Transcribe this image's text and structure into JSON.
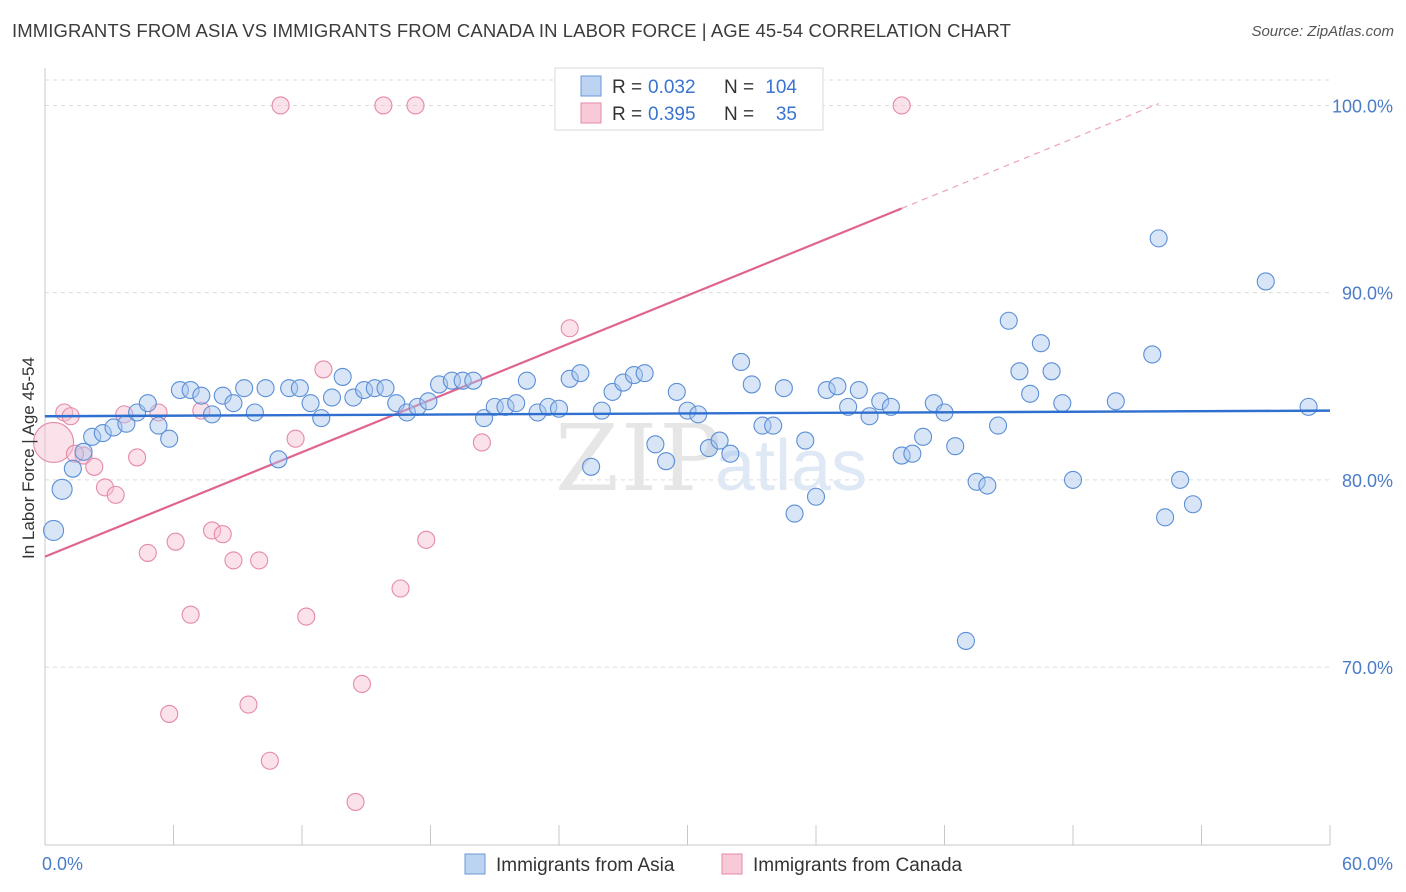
{
  "title": "IMMIGRANTS FROM ASIA VS IMMIGRANTS FROM CANADA IN LABOR FORCE | AGE 45-54 CORRELATION CHART",
  "source": "Source: ZipAtlas.com",
  "watermark": {
    "zip": "ZIP",
    "atlas": "atlas"
  },
  "colors": {
    "asia_fill": "#a9c6ee",
    "asia_stroke": "#5b8fd6",
    "asia_line": "#2f6fcf",
    "canada_fill": "#f6bfd0",
    "canada_stroke": "#e58aa8",
    "canada_line": "#e0648f",
    "tick_text": "#4a7cc7",
    "grid": "#dcdcdc"
  },
  "legend_top": {
    "asia": {
      "r_label": "R =",
      "r_value": "0.032",
      "n_label": "N =",
      "n_value": "104"
    },
    "canada": {
      "r_label": "R =",
      "r_value": "0.395",
      "n_label": "N =",
      "n_value": "35"
    }
  },
  "chart_data": {
    "type": "scatter",
    "title": "IMMIGRANTS FROM ASIA VS IMMIGRANTS FROM CANADA IN LABOR FORCE | AGE 45-54 CORRELATION CHART",
    "xlabel": "",
    "ylabel": "In Labor Force | Age 45-54",
    "xlim": [
      0,
      60
    ],
    "ylim": [
      60.5,
      102
    ],
    "x_tick_labels": [
      "0.0%",
      "60.0%"
    ],
    "y_ticks": [
      70,
      80,
      90,
      100
    ],
    "y_tick_labels": [
      "70.0%",
      "80.0%",
      "90.0%",
      "100.0%"
    ],
    "grid": true,
    "legend_position": "top-center",
    "series": [
      {
        "name": "Immigrants from Asia",
        "r": 0.032,
        "n": 104,
        "trend": {
          "x": [
            0,
            60
          ],
          "y": [
            83.4,
            83.7
          ]
        },
        "points": [
          [
            0.4,
            77.3
          ],
          [
            0.8,
            79.5
          ],
          [
            1.3,
            80.6
          ],
          [
            1.8,
            81.5
          ],
          [
            2.2,
            82.3
          ],
          [
            2.7,
            82.5
          ],
          [
            3.2,
            82.8
          ],
          [
            3.8,
            83.0
          ],
          [
            4.3,
            83.6
          ],
          [
            4.8,
            84.1
          ],
          [
            5.3,
            82.9
          ],
          [
            5.8,
            82.2
          ],
          [
            6.3,
            84.8
          ],
          [
            6.8,
            84.8
          ],
          [
            7.3,
            84.5
          ],
          [
            7.8,
            83.5
          ],
          [
            8.3,
            84.5
          ],
          [
            8.8,
            84.1
          ],
          [
            9.3,
            84.9
          ],
          [
            9.8,
            83.6
          ],
          [
            10.3,
            84.9
          ],
          [
            10.9,
            81.1
          ],
          [
            11.4,
            84.9
          ],
          [
            11.9,
            84.9
          ],
          [
            12.4,
            84.1
          ],
          [
            12.9,
            83.3
          ],
          [
            13.4,
            84.4
          ],
          [
            13.9,
            85.5
          ],
          [
            14.4,
            84.4
          ],
          [
            14.9,
            84.8
          ],
          [
            15.4,
            84.9
          ],
          [
            15.9,
            84.9
          ],
          [
            16.4,
            84.1
          ],
          [
            16.9,
            83.6
          ],
          [
            17.4,
            83.9
          ],
          [
            17.9,
            84.2
          ],
          [
            18.4,
            85.1
          ],
          [
            19.0,
            85.3
          ],
          [
            19.5,
            85.3
          ],
          [
            20.0,
            85.3
          ],
          [
            20.5,
            83.3
          ],
          [
            21.0,
            83.9
          ],
          [
            21.5,
            83.9
          ],
          [
            22.0,
            84.1
          ],
          [
            22.5,
            85.3
          ],
          [
            23.0,
            83.6
          ],
          [
            23.5,
            83.9
          ],
          [
            24.0,
            83.8
          ],
          [
            24.5,
            85.4
          ],
          [
            25.0,
            85.7
          ],
          [
            25.5,
            80.7
          ],
          [
            26.0,
            83.7
          ],
          [
            26.5,
            84.7
          ],
          [
            27.0,
            85.2
          ],
          [
            27.5,
            85.6
          ],
          [
            28.0,
            85.7
          ],
          [
            28.5,
            81.9
          ],
          [
            29.0,
            81.0
          ],
          [
            29.5,
            84.7
          ],
          [
            30.0,
            83.7
          ],
          [
            30.5,
            83.5
          ],
          [
            31.0,
            81.7
          ],
          [
            31.5,
            82.1
          ],
          [
            32.0,
            81.4
          ],
          [
            32.5,
            86.3
          ],
          [
            33.0,
            85.1
          ],
          [
            33.5,
            82.9
          ],
          [
            34.0,
            82.9
          ],
          [
            34.5,
            84.9
          ],
          [
            35.0,
            78.2
          ],
          [
            35.5,
            82.1
          ],
          [
            36.0,
            79.1
          ],
          [
            36.5,
            84.8
          ],
          [
            37.0,
            85.0
          ],
          [
            37.5,
            83.9
          ],
          [
            38.0,
            84.8
          ],
          [
            38.5,
            83.4
          ],
          [
            39.0,
            84.2
          ],
          [
            39.5,
            83.9
          ],
          [
            40.0,
            81.3
          ],
          [
            40.5,
            81.4
          ],
          [
            41.0,
            82.3
          ],
          [
            41.5,
            84.1
          ],
          [
            42.0,
            83.6
          ],
          [
            42.5,
            81.8
          ],
          [
            43.0,
            71.4
          ],
          [
            43.5,
            79.9
          ],
          [
            44.0,
            79.7
          ],
          [
            44.5,
            82.9
          ],
          [
            45.0,
            88.5
          ],
          [
            45.5,
            85.8
          ],
          [
            46.0,
            84.6
          ],
          [
            46.5,
            87.3
          ],
          [
            47.0,
            85.8
          ],
          [
            47.5,
            84.1
          ],
          [
            48.0,
            80.0
          ],
          [
            50.0,
            84.2
          ],
          [
            51.7,
            86.7
          ],
          [
            52.0,
            92.9
          ],
          [
            52.3,
            78.0
          ],
          [
            53.0,
            80.0
          ],
          [
            53.6,
            78.7
          ],
          [
            57.0,
            90.6
          ],
          [
            59.0,
            83.9
          ]
        ]
      },
      {
        "name": "Immigrants from Canada",
        "r": 0.395,
        "n": 35,
        "trend": {
          "x": [
            0,
            40
          ],
          "y": [
            75.9,
            94.5
          ]
        },
        "trend_dashed": {
          "x": [
            40,
            52
          ],
          "y": [
            94.5,
            100.1
          ]
        },
        "points": [
          [
            0.4,
            82.0
          ],
          [
            0.9,
            83.6
          ],
          [
            1.2,
            83.4
          ],
          [
            1.8,
            81.3
          ],
          [
            2.3,
            80.7
          ],
          [
            2.8,
            79.6
          ],
          [
            3.3,
            79.2
          ],
          [
            3.7,
            83.5
          ],
          [
            4.3,
            81.2
          ],
          [
            4.8,
            76.1
          ],
          [
            5.3,
            83.6
          ],
          [
            5.8,
            67.5
          ],
          [
            6.1,
            76.7
          ],
          [
            6.8,
            72.8
          ],
          [
            7.3,
            83.7
          ],
          [
            7.8,
            77.3
          ],
          [
            8.3,
            77.1
          ],
          [
            8.8,
            75.7
          ],
          [
            9.5,
            68.0
          ],
          [
            10.0,
            75.7
          ],
          [
            10.5,
            65.0
          ],
          [
            11.0,
            100.0
          ],
          [
            11.7,
            82.2
          ],
          [
            12.2,
            72.7
          ],
          [
            13.0,
            85.9
          ],
          [
            14.5,
            62.8
          ],
          [
            14.8,
            69.1
          ],
          [
            15.8,
            100.0
          ],
          [
            16.6,
            74.2
          ],
          [
            17.3,
            100.0
          ],
          [
            17.8,
            76.8
          ],
          [
            20.4,
            82.0
          ],
          [
            24.5,
            88.1
          ],
          [
            40.0,
            100.0
          ],
          [
            1.4,
            81.4
          ]
        ]
      }
    ]
  },
  "legend_bottom": [
    {
      "label": "Immigrants from Asia"
    },
    {
      "label": "Immigrants from Canada"
    }
  ]
}
